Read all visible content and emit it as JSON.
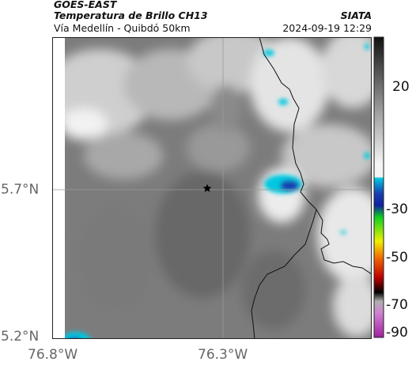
{
  "header": {
    "source": "GOES-EAST",
    "product": "Temperatura de Brillo CH13",
    "region": "Vía Medellín - Quibdó 50km",
    "organization": "SIATA",
    "timestamp": "2024-09-19 12:29"
  },
  "axes": {
    "lat_ticks": [
      "5.7°N",
      "5.2°N"
    ],
    "lon_ticks": [
      "76.8°W",
      "76.3°W"
    ]
  },
  "colorbar": {
    "ticks": [
      "20",
      "-30",
      "-50",
      "-70",
      "-90"
    ],
    "colors": {
      "warm_gray": "#f4f4f4",
      "mid_gray": "#8a8a8a",
      "cold_cyan": "#00c8e0",
      "cold_blue": "#1840b0",
      "green": "#10d020",
      "yellow": "#f0f000",
      "orange": "#f06000",
      "red": "#c00000",
      "black": "#000000",
      "magenta": "#c040c0"
    }
  },
  "map": {
    "marker": "star-icon",
    "background": "#7a7a7a"
  }
}
